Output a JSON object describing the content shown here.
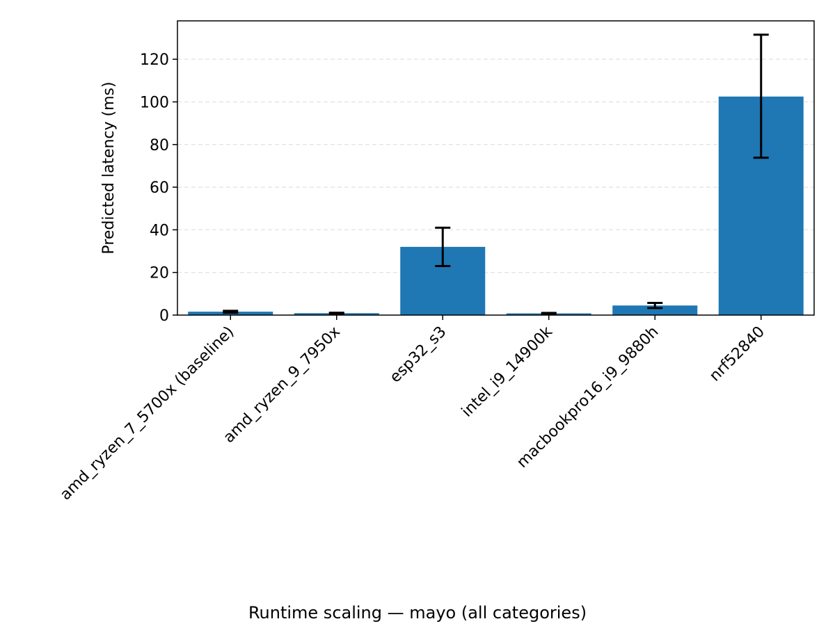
{
  "chart_data": {
    "type": "bar",
    "caption": "Runtime scaling — mayo (all categories)",
    "xlabel": "",
    "ylabel": "Predicted latency (ms)",
    "categories": [
      "amd_ryzen_7_5700x (baseline)",
      "amd_ryzen_9_7950x",
      "esp32_s3",
      "intel_i9_14900k",
      "macbookpro16_i9_9880h",
      "nrf52840"
    ],
    "values": [
      1.6,
      0.9,
      32.0,
      0.8,
      4.5,
      102.5
    ],
    "error_low": [
      1.1,
      0.7,
      23.0,
      0.6,
      3.3,
      73.8
    ],
    "error_high": [
      2.0,
      1.1,
      41.0,
      1.0,
      5.7,
      131.5
    ],
    "ylim": [
      0,
      138
    ],
    "yticks": [
      0,
      20,
      40,
      60,
      80,
      100,
      120
    ],
    "grid": "y-dashed",
    "colors": {
      "bar": "#1f77b4",
      "errorbar": "#000000",
      "grid": "#e6e6e6"
    }
  }
}
